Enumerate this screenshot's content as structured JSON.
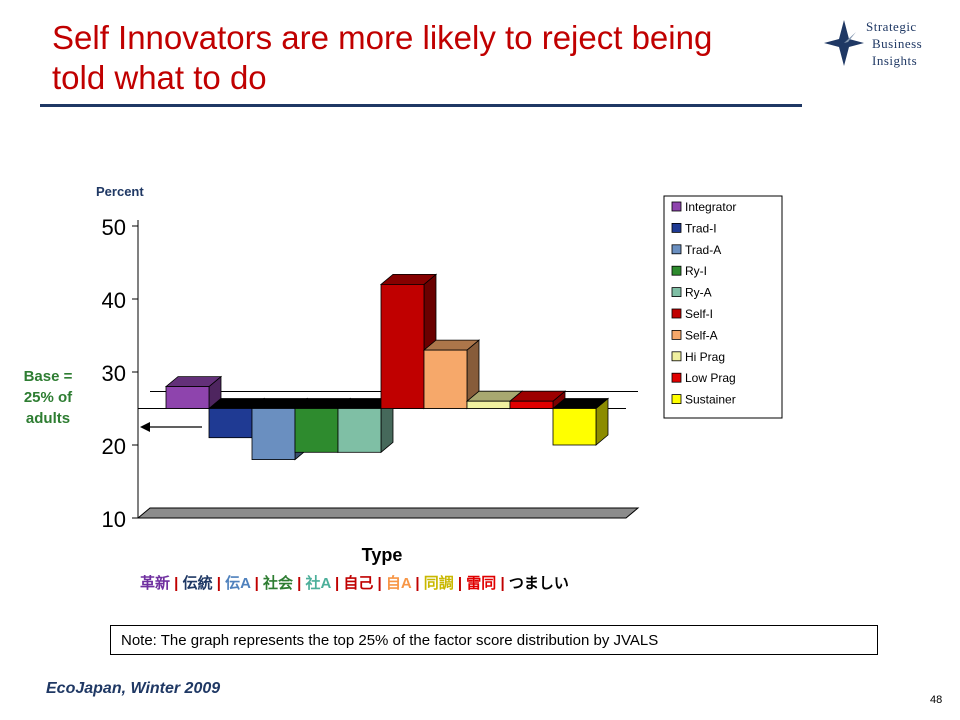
{
  "slide": {
    "title": "Self Innovators are more likely to reject being told what to do",
    "base_note": "Base = 25% of adults",
    "note": "Note:  The graph represents the top 25% of the factor score distribution by JVALS",
    "source": "EcoJapan, Winter 2009",
    "page_number": "48"
  },
  "logo": {
    "line1": "Strategic",
    "line2": "Business",
    "line3": "Insights",
    "color": "#1f3864"
  },
  "jp_labels": [
    {
      "text": "革新",
      "color": "#7030a0"
    },
    {
      "text": "伝統",
      "color": "#1f3864"
    },
    {
      "text": "伝A",
      "color": "#4f81bd"
    },
    {
      "text": "社会",
      "color": "#2e7d32"
    },
    {
      "text": "社A",
      "color": "#4caf9a"
    },
    {
      "text": "自己",
      "color": "#c00000"
    },
    {
      "text": "自A",
      "color": "#f79646"
    },
    {
      "text": "同調",
      "color": "#c9b800"
    },
    {
      "text": "雷同",
      "color": "#e00000"
    },
    {
      "text": "つましい",
      "color": "#000000"
    }
  ],
  "chart_data": {
    "type": "bar",
    "ylabel": "Percent",
    "xlabel": "Type",
    "ylim": [
      10,
      50
    ],
    "yticks": [
      10,
      20,
      30,
      40,
      50
    ],
    "baseline": 25,
    "categories": [
      "Integrator",
      "Trad-I",
      "Trad-A",
      "Ry-I",
      "Ry-A",
      "Self-I",
      "Self-A",
      "Hi Prag",
      "Low Prag",
      "Sustainer"
    ],
    "values": [
      28,
      21,
      18,
      19,
      19,
      42,
      33,
      26,
      26,
      20
    ],
    "colors": [
      "#8e44ad",
      "#1f3a93",
      "#6a8fc0",
      "#2e8b2e",
      "#7fbfa5",
      "#c00000",
      "#f6a86a",
      "#f0f0a0",
      "#e00000",
      "#ffff00"
    ],
    "legend": "right"
  }
}
